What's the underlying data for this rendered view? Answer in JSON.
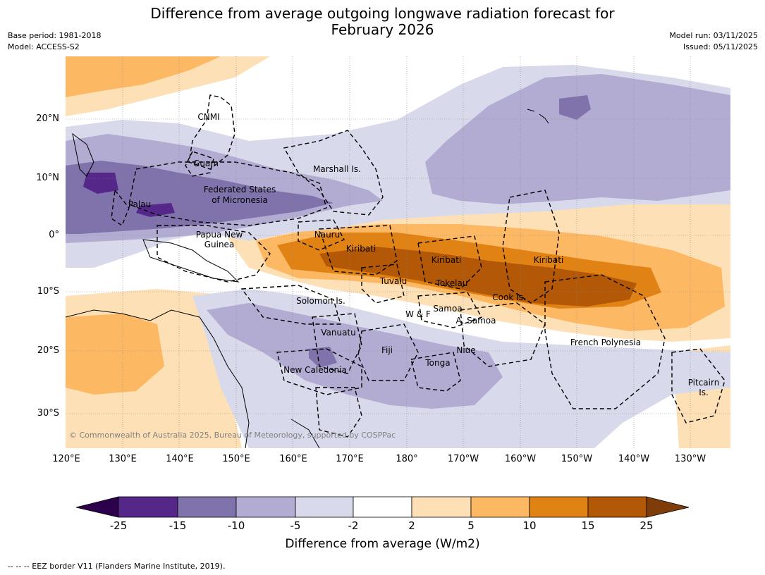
{
  "title": {
    "line1": "Difference from average outgoing longwave radiation forecast for",
    "line2": "February 2026"
  },
  "meta": {
    "base_period": "Base period: 1981-2018",
    "model": "Model: ACCESS-S2",
    "model_run": "Model run: 03/11/2025",
    "issued": "Issued: 05/11/2025"
  },
  "map": {
    "lon_ticks": [
      "120°E",
      "130°E",
      "140°E",
      "150°E",
      "160°E",
      "170°E",
      "180°",
      "170°W",
      "160°W",
      "150°W",
      "140°W",
      "130°W"
    ],
    "lat_ticks": [
      "20°N",
      "10°N",
      "0°",
      "10°S",
      "20°S",
      "30°S"
    ],
    "copyright": "© Commonwealth of Australia 2025, Bureau of Meteorology, supported by COSPPac",
    "places": {
      "cnmi": "CNMI",
      "guam": "Guam",
      "marshall": "Marshall Is.",
      "fsm_1": "Federated States",
      "fsm_2": "of Micronesia",
      "palau": "Palau",
      "png_1": "Papua New",
      "png_2": "Guinea",
      "nauru": "Nauru",
      "kiribati_w": "Kiribati",
      "kiribati_c": "Kiribati",
      "kiribati_e": "Kiribati",
      "tuvalu": "Tuvalu",
      "tokelau": "Tokelau",
      "cook": "Cook Is.",
      "solomon": "Solomon Is.",
      "wf": "W & F",
      "samoa": "Samoa",
      "amsamoa": "A. Samoa",
      "vanuatu": "Vanuatu",
      "fiji": "Fiji",
      "niue": "Niue",
      "tonga": "Tonga",
      "newcal": "New Caledonia",
      "frpoly": "French Polynesia",
      "pitcairn_1": "Pitcairn",
      "pitcairn_2": "Is."
    }
  },
  "legend": {
    "title": "Difference from average (W/m2)",
    "tick_labels": [
      "-25",
      "-15",
      "-10",
      "-5",
      "-2",
      "2",
      "5",
      "10",
      "15",
      "25"
    ],
    "colors": {
      "below_min": "#2d004b",
      "lt_neg15": "#542788",
      "neg15_neg10": "#8073ac",
      "neg10_neg5": "#b2abd2",
      "neg5_neg2": "#d8daeb",
      "neutral": "#ffffff",
      "pos2_5": "#fee0b6",
      "pos5_10": "#fdb863",
      "pos10_15": "#e08214",
      "pos15_25": "#b35806",
      "above_max": "#7f3b08"
    }
  },
  "footer": "--  --  -- EEZ border V11 (Flanders Marine Institute, 2019)."
}
